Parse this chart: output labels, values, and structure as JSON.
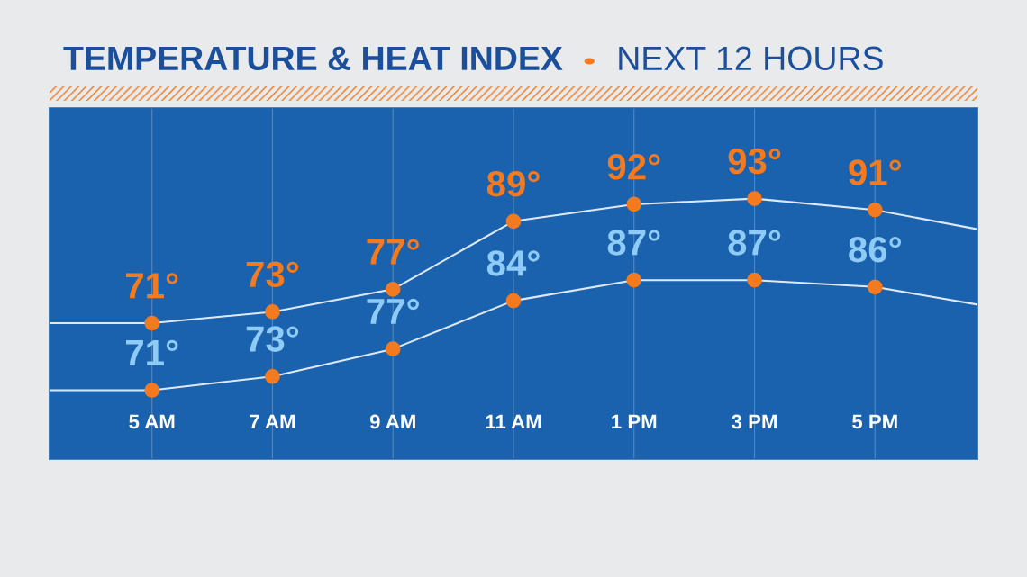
{
  "chart_data": {
    "type": "line",
    "title": "TEMPERATURE & HEAT INDEX",
    "subtitle": "NEXT 12 HOURS",
    "categories": [
      null,
      "5 AM",
      "7 AM",
      "9 AM",
      "11 AM",
      "1 PM",
      "3 PM",
      "5 PM",
      null
    ],
    "ylim": [
      47,
      109
    ],
    "y2lim": [
      61,
      112
    ],
    "tick_labels": "x",
    "grid": "x",
    "marker": "circle",
    "line_style": "solid",
    "series": [
      {
        "color": "#f47a20",
        "values": [
          71,
          71,
          73,
          77,
          89,
          92,
          93,
          91,
          87
        ],
        "value_labels": [
          null,
          "71°",
          "73°",
          "77°",
          "89°",
          "92°",
          "93°",
          "91°",
          null
        ]
      },
      {
        "color": "#f47a20",
        "axis": "y2",
        "values": [
          71,
          71,
          73,
          77,
          84,
          87,
          87,
          86,
          83
        ],
        "value_labels": [
          null,
          "71°",
          "73°",
          "77°",
          "84°",
          "87°",
          "87°",
          "86°",
          null
        ]
      }
    ]
  }
}
